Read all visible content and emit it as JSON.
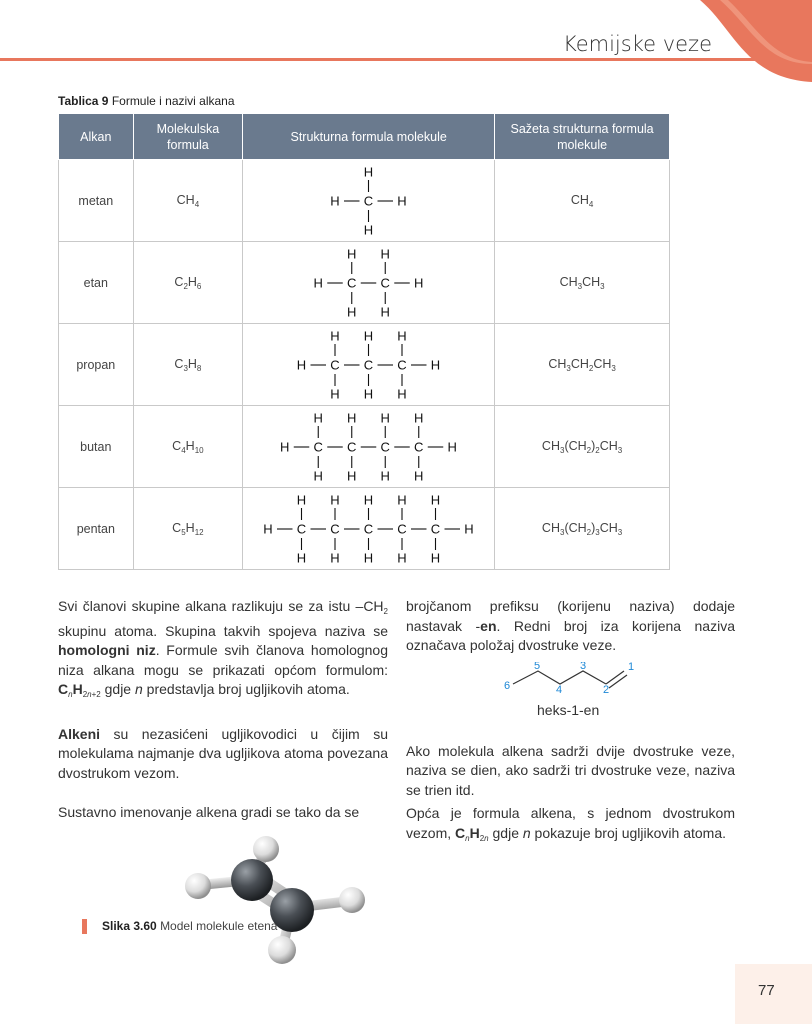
{
  "header": {
    "chapter_title": "Kemijske veze"
  },
  "table": {
    "caption_num": "Tablica 9",
    "caption_text": "Formule i nazivi alkana",
    "headers": {
      "col1": "Alkan",
      "col2": "Molekulska formula",
      "col3": "Strukturna formula molekule",
      "col4": "Sažeta strukturna formula molekule"
    },
    "rows": [
      {
        "name": "metan",
        "mol_formula": "CH<sub>4</sub>",
        "condensed": "CH<sub>4</sub>",
        "carbons": 1
      },
      {
        "name": "etan",
        "mol_formula": "C<sub>2</sub>H<sub>6</sub>",
        "condensed": "CH<sub>3</sub>CH<sub>3</sub>",
        "carbons": 2
      },
      {
        "name": "propan",
        "mol_formula": "C<sub>3</sub>H<sub>8</sub>",
        "condensed": "CH<sub>3</sub>CH<sub>2</sub>CH<sub>3</sub>",
        "carbons": 3
      },
      {
        "name": "butan",
        "mol_formula": "C<sub>4</sub>H<sub>10</sub>",
        "condensed": "CH<sub>3</sub>(CH<sub>2</sub>)<sub>2</sub>CH<sub>3</sub>",
        "carbons": 4
      },
      {
        "name": "pentan",
        "mol_formula": "C<sub>5</sub>H<sub>12</sub>",
        "condensed": "CH<sub>3</sub>(CH<sub>2</sub>)<sub>3</sub>CH<sub>3</sub>",
        "carbons": 5
      }
    ],
    "atom_c": "C",
    "atom_h": "H"
  },
  "text": {
    "p1": "Svi članovi skupine alkana razlikuju se za istu –CH<sub>2</sub> skupinu atoma. Skupina takvih spojeva naziva se <b>homologni niz</b>. Formule svih članova homolognog niza alkana mogu se prikazati općom formulom: <b>C</b><sub><i>n</i></sub><b>H</b><sub>2<i>n</i>+2</sub> gdje <i>n</i> predstavlja broj ugljikovih atoma.",
    "p2": "<b>Alkeni</b> su nezasićeni ugljikovodici u čijim su molekulama najmanje dva ugljikova atoma povezana dvostrukom vezom.",
    "p3": "Sustavno imenovanje alkena gradi se tako da se",
    "p4": "brojčanom prefiksu (korijenu naziva) dodaje nastavak -<b>en</b>. Redni broj iza korijena naziva označava položaj dvostruke veze.",
    "p5": "Ako molekula alkena sadrži dvije dvostruke veze, naziva se dien, ako sadrži tri dvostruke veze, naziva se trien itd.",
    "p6": "Opća je formula alkena, s jednom dvostrukom vezom, <b>C</b><sub><i>n</i></sub><b>H</b><sub>2<i>n</i></sub> gdje <i>n</i> pokazuje broj ugljikovih atoma."
  },
  "hexene": {
    "numbers": [
      "6",
      "5",
      "4",
      "3",
      "2",
      "1"
    ],
    "label": "heks-1-en",
    "color": "#1e88d6"
  },
  "figure": {
    "caption_num": "Slika 3.60",
    "caption_text": "Model molekule etena"
  },
  "page_number": "77",
  "colors": {
    "accent": "#e8775d",
    "header_bg": "#6a7a8e"
  }
}
